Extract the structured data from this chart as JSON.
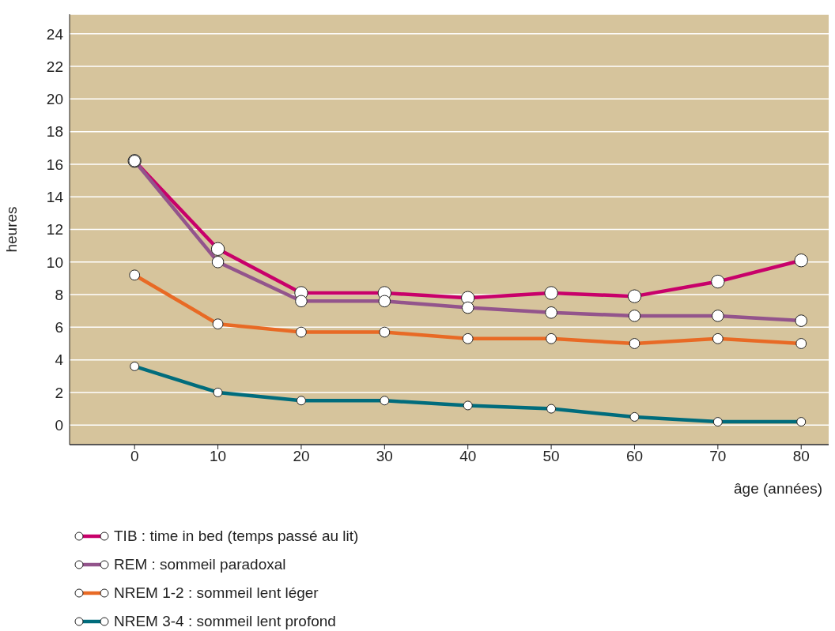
{
  "chart_data": {
    "type": "line",
    "xlabel": "âge (années)",
    "ylabel": "heures",
    "x": [
      0,
      10,
      20,
      30,
      40,
      50,
      60,
      70,
      80
    ],
    "series": [
      {
        "name": "TIB : time in bed (temps passé au lit)",
        "color": "#c8006a",
        "values": [
          16.2,
          10.8,
          8.1,
          8.1,
          7.8,
          8.1,
          7.9,
          8.8,
          10.1
        ]
      },
      {
        "name": "REM : sommeil paradoxal",
        "color": "#93548c",
        "values": [
          16.2,
          10.0,
          7.6,
          7.6,
          7.2,
          6.9,
          6.7,
          6.7,
          6.4
        ]
      },
      {
        "name": "NREM 1-2 : sommeil lent léger",
        "color": "#e86a25",
        "values": [
          9.2,
          6.2,
          5.7,
          5.7,
          5.3,
          5.3,
          5.0,
          5.3,
          5.0
        ]
      },
      {
        "name": "NREM 3-4 : sommeil lent profond",
        "color": "#006c7c",
        "values": [
          3.6,
          2.0,
          1.5,
          1.5,
          1.2,
          1.0,
          0.5,
          0.2,
          0.2
        ]
      }
    ],
    "xlim": [
      -7.8,
      83.3
    ],
    "xticks": [
      0,
      10,
      20,
      30,
      40,
      50,
      60,
      70,
      80
    ],
    "ylim": [
      -1.2,
      25.2
    ],
    "yticks": [
      0,
      2,
      4,
      6,
      8,
      10,
      12,
      14,
      16,
      18,
      20,
      22,
      24
    ],
    "grid": "y",
    "legend": "bottom",
    "marker": "circle",
    "line_style": "solid"
  }
}
